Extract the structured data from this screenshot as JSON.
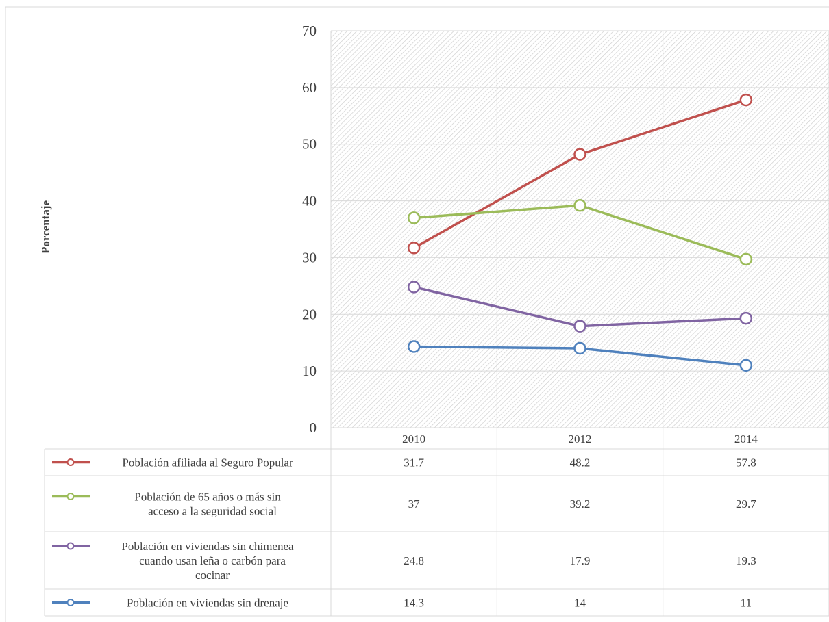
{
  "chart_data": {
    "type": "line",
    "title": "",
    "xlabel": "",
    "ylabel": "Porcentaje",
    "categories": [
      "2010",
      "2012",
      "2014"
    ],
    "ylim": [
      0,
      70
    ],
    "yticks": [
      0,
      10,
      20,
      30,
      40,
      50,
      60,
      70
    ],
    "grid": true,
    "legend": "data-table-below",
    "series": [
      {
        "name": "Población afiliada al Seguro Popular",
        "name_lines": [
          "Población afiliada al Seguro Popular"
        ],
        "values": [
          31.7,
          48.2,
          57.8
        ],
        "labels": [
          "31.7",
          "48.2",
          "57.8"
        ],
        "color": "#c0504d"
      },
      {
        "name": "Población de 65 años o más sin acceso a la seguridad social",
        "name_lines": [
          "Población de 65 años o más sin",
          "acceso a la seguridad social"
        ],
        "values": [
          37,
          39.2,
          29.7
        ],
        "labels": [
          "37",
          "39.2",
          "29.7"
        ],
        "color": "#9bbb59"
      },
      {
        "name": "Población en viviendas sin chimenea cuando usan leña o carbón para cocinar",
        "name_lines": [
          "Población en viviendas sin chimenea",
          "cuando usan leña o carbón para",
          "cocinar"
        ],
        "values": [
          24.8,
          17.9,
          19.3
        ],
        "labels": [
          "24.8",
          "17.9",
          "19.3"
        ],
        "color": "#8064a2"
      },
      {
        "name": "Población en viviendas sin drenaje",
        "name_lines": [
          "Población en viviendas sin drenaje"
        ],
        "values": [
          14.3,
          14,
          11
        ],
        "labels": [
          "14.3",
          "14",
          "11"
        ],
        "color": "#4f81bd"
      }
    ]
  }
}
